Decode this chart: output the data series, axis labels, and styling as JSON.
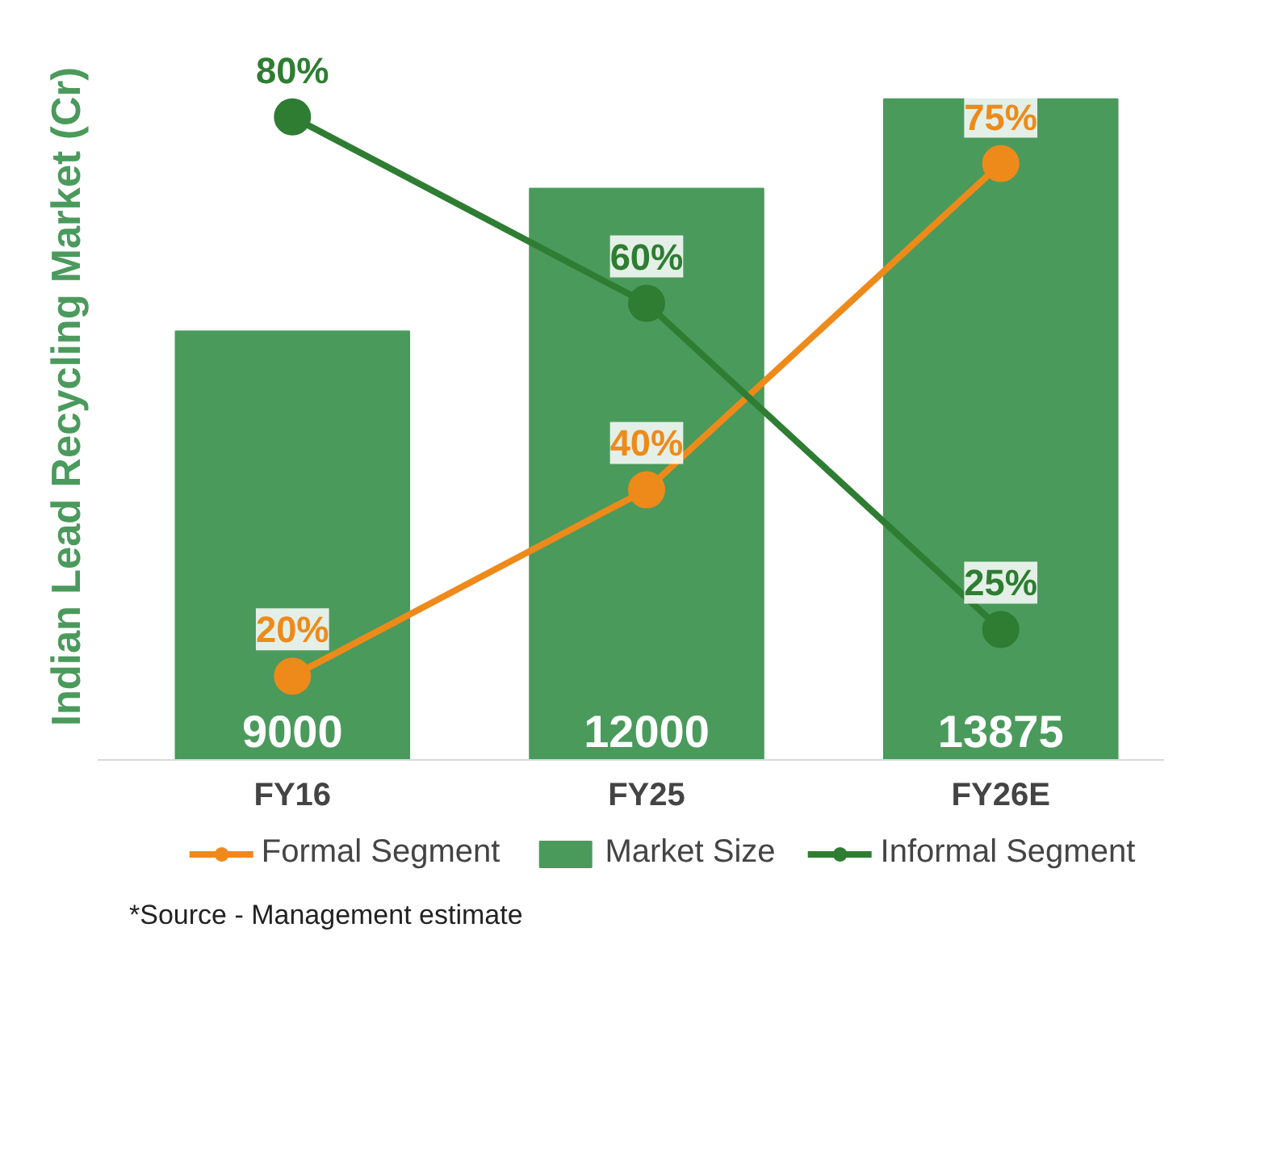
{
  "chart_data": {
    "type": "bar",
    "ylabel": "Indian Lead Recycling Market (Cr)",
    "categories": [
      "FY16",
      "FY25",
      "FY26E"
    ],
    "series": [
      {
        "name": "Formal Segment",
        "type": "line",
        "axis": "y2",
        "color": "#ee8a1a",
        "values": [
          20,
          40,
          75
        ],
        "value_labels": [
          "20%",
          "40%",
          "75%"
        ]
      },
      {
        "name": "Market Size",
        "color": "#4a9a5c",
        "values": [
          9000,
          12000,
          13875
        ],
        "value_labels": [
          "9000",
          "12000",
          "13875"
        ]
      },
      {
        "name": "Informal Segment",
        "type": "line",
        "axis": "y2",
        "color": "#2e7d32",
        "values": [
          80,
          60,
          25
        ],
        "value_labels": [
          "80%",
          "60%",
          "25%"
        ]
      }
    ],
    "tick_labels": "x",
    "grid": false,
    "legend": "bottom",
    "marker": "circle",
    "line_style": "solid",
    "annotations": [
      "*Source - Management estimate"
    ]
  }
}
